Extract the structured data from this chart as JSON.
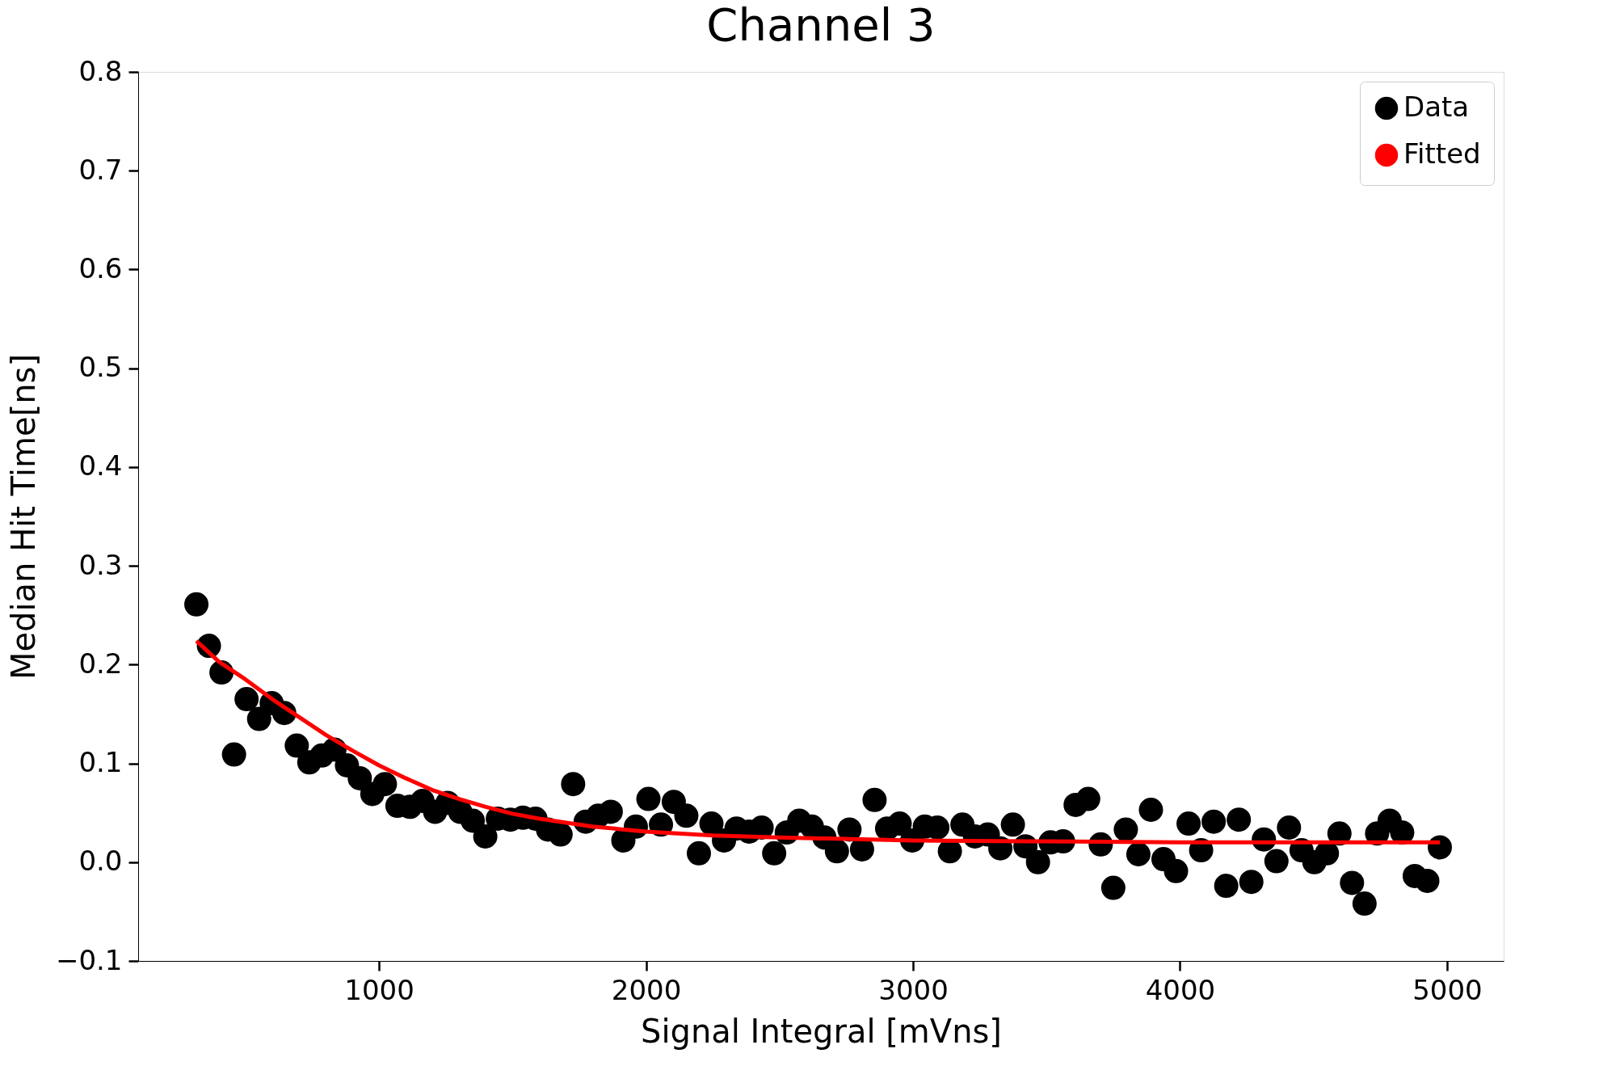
{
  "chart_data": {
    "type": "scatter",
    "title": "Channel 3",
    "xlabel": "Signal Integral [mVns]",
    "ylabel": "Median Hit Time[ns]",
    "xlim": [
      98,
      5212
    ],
    "ylim": [
      -0.1,
      0.8
    ],
    "xticks": [
      1000,
      2000,
      3000,
      4000,
      5000
    ],
    "yticks": [
      {
        "value": -0.1,
        "label": "−0.1"
      },
      {
        "value": 0,
        "label": "0.0"
      },
      0.1,
      0.2,
      0.3,
      0.4,
      0.5,
      0.6,
      0.7,
      0.8
    ],
    "grid": false,
    "legend": "top right",
    "series": [
      {
        "name": "Data",
        "marker": "circle",
        "color": "#000000",
        "x": [
          316,
          363,
          410,
          457,
          504,
          551,
          598,
          645,
          692,
          739,
          786,
          833,
          880,
          928,
          975,
          1022,
          1069,
          1116,
          1163,
          1210,
          1257,
          1304,
          1351,
          1398,
          1445,
          1492,
          1539,
          1586,
          1633,
          1680,
          1727,
          1774,
          1821,
          1868,
          1915,
          1962,
          2009,
          2056,
          2104,
          2151,
          2198,
          2245,
          2292,
          2339,
          2386,
          2433,
          2480,
          2527,
          2574,
          2621,
          2668,
          2715,
          2762,
          2809,
          2856,
          2903,
          2950,
          2997,
          3044,
          3091,
          3138,
          3185,
          3232,
          3280,
          3327,
          3374,
          3421,
          3468,
          3515,
          3562,
          3609,
          3656,
          3703,
          3750,
          3797,
          3844,
          3891,
          3938,
          3985,
          4032,
          4079,
          4126,
          4173,
          4220,
          4267,
          4314,
          4361,
          4408,
          4455,
          4503,
          4550,
          4597,
          4644,
          4691,
          4738,
          4785,
          4832,
          4879,
          4926,
          4973
        ],
        "values": [
          0.261,
          0.219,
          0.192,
          0.109,
          0.165,
          0.145,
          0.161,
          0.151,
          0.118,
          0.101,
          0.108,
          0.114,
          0.098,
          0.085,
          0.069,
          0.079,
          0.057,
          0.056,
          0.062,
          0.051,
          0.06,
          0.051,
          0.042,
          0.026,
          0.044,
          0.043,
          0.045,
          0.044,
          0.033,
          0.028,
          0.079,
          0.041,
          0.047,
          0.051,
          0.022,
          0.036,
          0.064,
          0.038,
          0.061,
          0.047,
          0.009,
          0.039,
          0.022,
          0.034,
          0.031,
          0.035,
          0.009,
          0.03,
          0.042,
          0.036,
          0.025,
          0.011,
          0.033,
          0.013,
          0.063,
          0.034,
          0.039,
          0.022,
          0.036,
          0.035,
          0.011,
          0.038,
          0.026,
          0.028,
          0.014,
          0.038,
          0.016,
          0.0,
          0.02,
          0.021,
          0.058,
          0.064,
          0.018,
          -0.026,
          0.033,
          0.008,
          0.053,
          0.003,
          -0.009,
          0.039,
          0.012,
          0.041,
          -0.024,
          0.043,
          -0.02,
          0.023,
          0.001,
          0.035,
          0.012,
          0.0,
          0.009,
          0.029,
          -0.021,
          -0.042,
          0.029,
          0.042,
          0.03,
          -0.014,
          -0.019,
          0.015
        ]
      },
      {
        "name": "Fitted",
        "type": "line",
        "marker": "none",
        "line_style": "solid",
        "color": "#ff0000",
        "x": [
          316,
          400,
          500,
          600,
          700,
          800,
          900,
          1000,
          1100,
          1200,
          1300,
          1400,
          1500,
          1600,
          1800,
          2000,
          2250,
          2500,
          3000,
          3500,
          4000,
          4500,
          4973
        ],
        "values": [
          0.224,
          0.203,
          0.185,
          0.165,
          0.147,
          0.129,
          0.113,
          0.098,
          0.085,
          0.073,
          0.064,
          0.056,
          0.049,
          0.044,
          0.036,
          0.031,
          0.027,
          0.025,
          0.022,
          0.021,
          0.02,
          0.02,
          0.02
        ]
      }
    ]
  }
}
